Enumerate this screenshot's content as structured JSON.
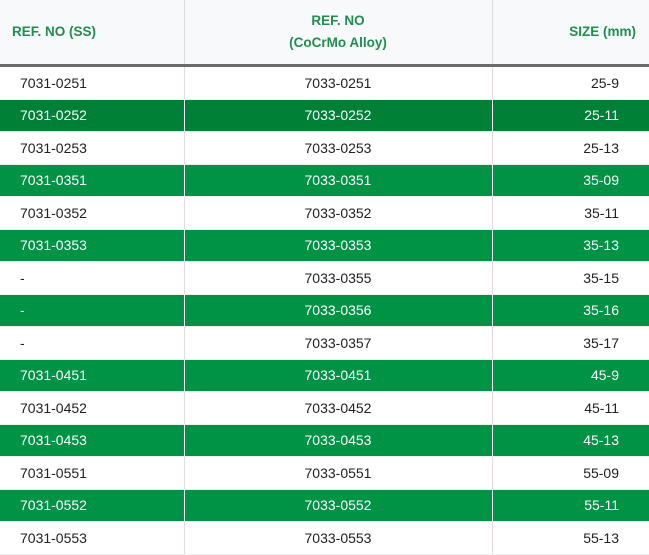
{
  "headers": {
    "ss": "REF. NO (SS)",
    "alloy_line1": "REF. NO",
    "alloy_line2": "(CoCrMo Alloy)",
    "size": "SIZE (mm)"
  },
  "colors": {
    "green": "#009345",
    "green_dark": "#008037",
    "header_text": "#1f8f4e"
  },
  "rows": [
    {
      "ss": "7031-0251",
      "alloy": "7033-0251",
      "size": "25-9"
    },
    {
      "ss": "7031-0252",
      "alloy": "7033-0252",
      "size": "25-11"
    },
    {
      "ss": "7031-0253",
      "alloy": "7033-0253",
      "size": "25-13"
    },
    {
      "ss": "7031-0351",
      "alloy": "7033-0351",
      "size": "35-09"
    },
    {
      "ss": "7031-0352",
      "alloy": "7033-0352",
      "size": "35-11"
    },
    {
      "ss": "7031-0353",
      "alloy": "7033-0353",
      "size": "35-13"
    },
    {
      "ss": "-",
      "alloy": "7033-0355",
      "size": "35-15"
    },
    {
      "ss": "-",
      "alloy": "7033-0356",
      "size": "35-16"
    },
    {
      "ss": "-",
      "alloy": "7033-0357",
      "size": "35-17"
    },
    {
      "ss": "7031-0451",
      "alloy": "7033-0451",
      "size": "45-9"
    },
    {
      "ss": "7031-0452",
      "alloy": "7033-0452",
      "size": "45-11"
    },
    {
      "ss": "7031-0453",
      "alloy": "7033-0453",
      "size": "45-13"
    },
    {
      "ss": "7031-0551",
      "alloy": "7033-0551",
      "size": "55-09"
    },
    {
      "ss": "7031-0552",
      "alloy": "7033-0552",
      "size": "55-11"
    },
    {
      "ss": "7031-0553",
      "alloy": "7033-0553",
      "size": "55-13"
    }
  ]
}
